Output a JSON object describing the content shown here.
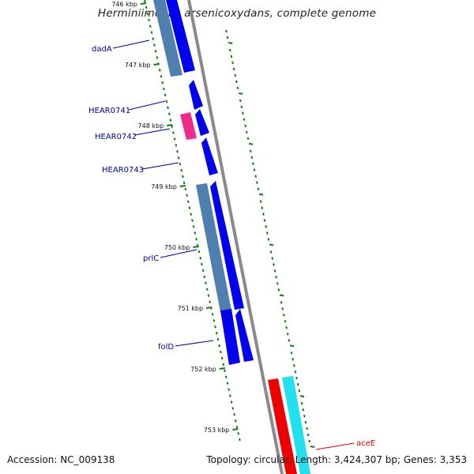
{
  "title": "Herminiimonas arsenicoxydans, complete genome",
  "accession": "Accession: NC_009138",
  "topology": "Topology: circular; Length: 3,424,307 bp; Genes: 3,353",
  "ticks": [
    {
      "label": "746 kbp",
      "value": 746
    },
    {
      "label": "747 kbp",
      "value": 747
    },
    {
      "label": "748 kbp",
      "value": 748
    },
    {
      "label": "749 kbp",
      "value": 749
    },
    {
      "label": "750 kbp",
      "value": 750
    },
    {
      "label": "751 kbp",
      "value": 751
    },
    {
      "label": "752 kbp",
      "value": 752
    },
    {
      "label": "753 kbp",
      "value": 753
    }
  ],
  "gene_labels": [
    "dadA",
    "HEAR0741",
    "HEAR0742",
    "HEAR0743",
    "prlC",
    "folD",
    "aceE"
  ],
  "colors": {
    "cds": "#0000ee",
    "gene": "#4f7fae",
    "pseudo": "#ee2b8a",
    "red_feature": "#ee0000",
    "cyan_feature": "#22e0ee",
    "backbone": "#8a8a8a",
    "tick": "#117a11",
    "label": "#000099",
    "highlight_label": "#dd0000"
  }
}
